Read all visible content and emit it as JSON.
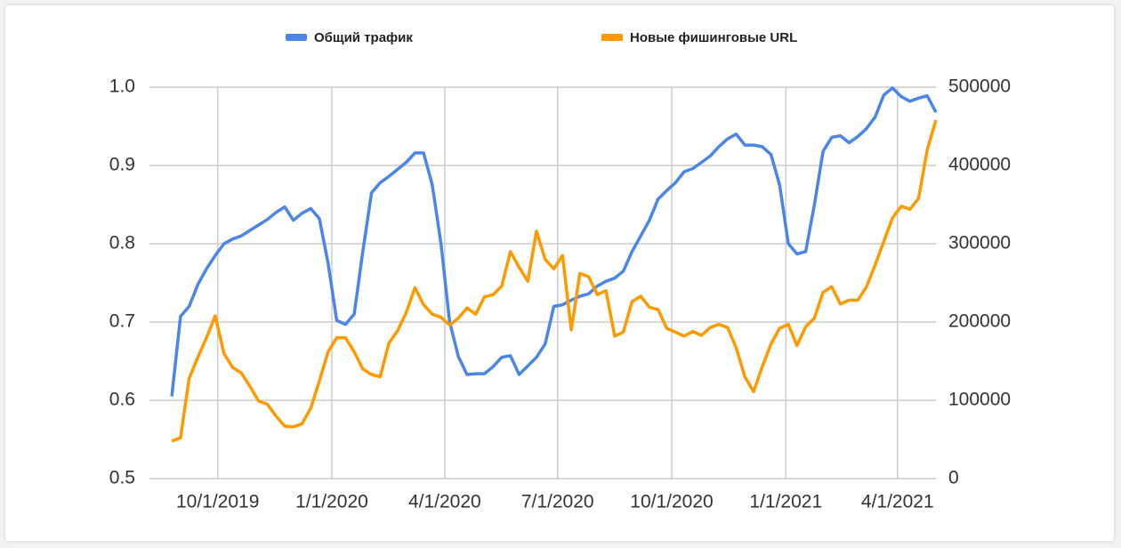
{
  "chart_data": {
    "type": "line",
    "x": [
      "2019-08-25",
      "2019-09-01",
      "2019-09-08",
      "2019-09-15",
      "2019-09-22",
      "2019-09-29",
      "2019-10-06",
      "2019-10-13",
      "2019-10-20",
      "2019-10-27",
      "2019-11-03",
      "2019-11-10",
      "2019-11-17",
      "2019-11-24",
      "2019-12-01",
      "2019-12-08",
      "2019-12-15",
      "2019-12-22",
      "2019-12-29",
      "2020-01-05",
      "2020-01-12",
      "2020-01-19",
      "2020-01-26",
      "2020-02-02",
      "2020-02-09",
      "2020-02-16",
      "2020-02-23",
      "2020-03-01",
      "2020-03-08",
      "2020-03-15",
      "2020-03-22",
      "2020-03-29",
      "2020-04-05",
      "2020-04-12",
      "2020-04-19",
      "2020-04-26",
      "2020-05-03",
      "2020-05-10",
      "2020-05-17",
      "2020-05-24",
      "2020-05-31",
      "2020-06-07",
      "2020-06-14",
      "2020-06-21",
      "2020-06-28",
      "2020-07-05",
      "2020-07-12",
      "2020-07-19",
      "2020-07-26",
      "2020-08-02",
      "2020-08-09",
      "2020-08-16",
      "2020-08-23",
      "2020-08-30",
      "2020-09-06",
      "2020-09-13",
      "2020-09-20",
      "2020-09-27",
      "2020-10-04",
      "2020-10-11",
      "2020-10-18",
      "2020-10-25",
      "2020-11-01",
      "2020-11-08",
      "2020-11-15",
      "2020-11-22",
      "2020-11-29",
      "2020-12-06",
      "2020-12-13",
      "2020-12-20",
      "2020-12-27",
      "2021-01-03",
      "2021-01-10",
      "2021-01-17",
      "2021-01-24",
      "2021-01-31",
      "2021-02-07",
      "2021-02-14",
      "2021-02-21",
      "2021-02-28",
      "2021-03-07",
      "2021-03-14",
      "2021-03-21",
      "2021-03-28",
      "2021-04-04",
      "2021-04-11",
      "2021-04-18",
      "2021-04-25",
      "2021-05-02"
    ],
    "series": [
      {
        "name": "Общий трафик",
        "color": "#4a86e8",
        "values": [
          0.605,
          0.707,
          0.72,
          0.748,
          0.768,
          0.785,
          0.8,
          0.806,
          0.81,
          0.817,
          0.824,
          0.831,
          0.84,
          0.847,
          0.83,
          0.839,
          0.845,
          0.832,
          0.775,
          0.702,
          0.697,
          0.71,
          0.79,
          0.865,
          0.878,
          0.886,
          0.895,
          0.904,
          0.916,
          0.916,
          0.875,
          0.8,
          0.7,
          0.656,
          0.633,
          0.634,
          0.634,
          0.643,
          0.655,
          0.657,
          0.633,
          0.644,
          0.655,
          0.672,
          0.72,
          0.722,
          0.728,
          0.733,
          0.736,
          0.746,
          0.752,
          0.756,
          0.765,
          0.79,
          0.81,
          0.83,
          0.857,
          0.868,
          0.878,
          0.892,
          0.896,
          0.904,
          0.912,
          0.924,
          0.934,
          0.94,
          0.926,
          0.926,
          0.924,
          0.914,
          0.875,
          0.8,
          0.787,
          0.79,
          0.85,
          0.918,
          0.936,
          0.938,
          0.929,
          0.937,
          0.947,
          0.962,
          0.99,
          0.999,
          0.988,
          0.982,
          0.986,
          0.989,
          0.968
        ]
      },
      {
        "name": "Новые фишинговые URL",
        "color": "#ff9900",
        "axis": "y2",
        "values": [
          48000,
          52000,
          128000,
          155000,
          180000,
          208000,
          160000,
          142000,
          135000,
          118000,
          99000,
          95000,
          80000,
          67000,
          66000,
          70000,
          90000,
          125000,
          162000,
          180000,
          180000,
          162000,
          140000,
          133000,
          130000,
          173000,
          189000,
          212000,
          244000,
          222000,
          210000,
          206000,
          196000,
          205000,
          218000,
          210000,
          232000,
          235000,
          246000,
          290000,
          270000,
          252000,
          316000,
          280000,
          268000,
          285000,
          190000,
          262000,
          258000,
          235000,
          240000,
          182000,
          187000,
          226000,
          233000,
          219000,
          216000,
          192000,
          187000,
          182000,
          188000,
          183000,
          193000,
          197000,
          193000,
          167000,
          130000,
          111000,
          143000,
          172000,
          192000,
          197000,
          170000,
          194000,
          205000,
          238000,
          245000,
          223000,
          228000,
          228000,
          245000,
          273000,
          303000,
          333000,
          348000,
          344000,
          358000,
          420000,
          458000
        ]
      }
    ],
    "xlim": [
      "2019-08-07",
      "2021-05-02"
    ],
    "xticks": [
      {
        "value": "2019-10-01",
        "label": "10/1/2019"
      },
      {
        "value": "2020-01-01",
        "label": "1/1/2020"
      },
      {
        "value": "2020-04-01",
        "label": "4/1/2020"
      },
      {
        "value": "2020-07-01",
        "label": "7/1/2020"
      },
      {
        "value": "2020-10-01",
        "label": "10/1/2020"
      },
      {
        "value": "2021-01-01",
        "label": "1/1/2021"
      },
      {
        "value": "2021-04-01",
        "label": "4/1/2021"
      }
    ],
    "ylim": [
      0.5,
      1.0
    ],
    "yticks": [
      0.5,
      0.6,
      0.7,
      0.8,
      0.9,
      {
        "value": 1.0,
        "label": "1.0"
      }
    ],
    "y2lim": [
      0,
      500000
    ],
    "y2ticks": [
      0,
      100000,
      200000,
      300000,
      400000,
      500000
    ],
    "grid": true,
    "legend": "top"
  }
}
